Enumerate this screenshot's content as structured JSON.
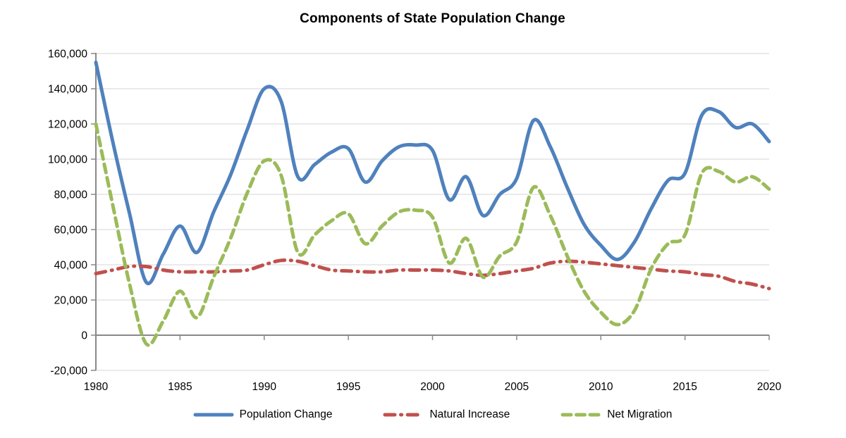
{
  "title": "Components of State Population Change",
  "chart_data": {
    "type": "line",
    "title": "Components of State Population Change",
    "x": [
      1980,
      1981,
      1982,
      1983,
      1984,
      1985,
      1986,
      1987,
      1988,
      1989,
      1990,
      1991,
      1992,
      1993,
      1994,
      1995,
      1996,
      1997,
      1998,
      1999,
      2000,
      2001,
      2002,
      2003,
      2004,
      2005,
      2006,
      2007,
      2008,
      2009,
      2010,
      2011,
      2012,
      2013,
      2014,
      2015,
      2016,
      2017,
      2018,
      2019,
      2020
    ],
    "series": [
      {
        "name": "Population Change",
        "color": "#4F81BD",
        "dash": "solid",
        "values": [
          155000,
          110000,
          69000,
          30000,
          46000,
          62000,
          47000,
          70000,
          91000,
          117000,
          140000,
          133000,
          90000,
          97000,
          104000,
          106000,
          87000,
          99000,
          107000,
          108000,
          105000,
          77000,
          90000,
          68000,
          80000,
          89000,
          122000,
          107000,
          84000,
          63000,
          51000,
          43000,
          53000,
          72000,
          88000,
          92000,
          125000,
          127000,
          118000,
          120000,
          110000
        ]
      },
      {
        "name": "Natural Increase",
        "color": "#C0504D",
        "dash": "dash-dot",
        "values": [
          35000,
          37000,
          39000,
          39000,
          37000,
          36000,
          36000,
          36000,
          36500,
          37000,
          40000,
          42500,
          42000,
          39500,
          37000,
          36500,
          36000,
          36000,
          37000,
          37000,
          37000,
          36500,
          35000,
          34000,
          35000,
          36500,
          38000,
          41000,
          42000,
          41500,
          40500,
          39500,
          38500,
          37500,
          36500,
          36000,
          34500,
          33500,
          30500,
          29000,
          26500
        ]
      },
      {
        "name": "Net Migration",
        "color": "#9BBB59",
        "dash": "dashed",
        "values": [
          120000,
          74000,
          29000,
          -5000,
          8000,
          25000,
          10000,
          33000,
          55000,
          81000,
          99000,
          91000,
          47000,
          57000,
          65000,
          69000,
          52000,
          62000,
          70000,
          71000,
          67000,
          41000,
          55000,
          33000,
          45000,
          53000,
          84000,
          68000,
          45000,
          25000,
          13000,
          6000,
          14000,
          38000,
          52000,
          57000,
          92000,
          93000,
          87000,
          90000,
          83000
        ]
      }
    ],
    "ylim": [
      -20000,
      160000
    ],
    "ytick_values": [
      160000,
      140000,
      120000,
      100000,
      80000,
      60000,
      40000,
      20000,
      0,
      -20000
    ],
    "ytick_labels": [
      "160,000",
      "140,000",
      "120,000",
      "100,000",
      "80,000",
      "60,000",
      "40,000",
      "20,000",
      "0",
      "-20,000"
    ],
    "xtick_values": [
      1980,
      1985,
      1990,
      1995,
      2000,
      2005,
      2010,
      2015,
      2020
    ],
    "xtick_labels": [
      "1980",
      "1985",
      "1990",
      "1995",
      "2000",
      "2005",
      "2010",
      "2015",
      "2020"
    ],
    "grid": true,
    "legend_position": "bottom"
  },
  "legend": {
    "items": [
      {
        "label": "Population Change"
      },
      {
        "label": "Natural Increase"
      },
      {
        "label": "Net Migration"
      }
    ]
  },
  "colors": {
    "series_population_change": "#4F81BD",
    "series_natural_increase": "#C0504D",
    "series_net_migration": "#9BBB59",
    "gridline": "#D6D6D6",
    "axis": "#898989",
    "text": "#000000",
    "background": "#FFFFFF"
  }
}
